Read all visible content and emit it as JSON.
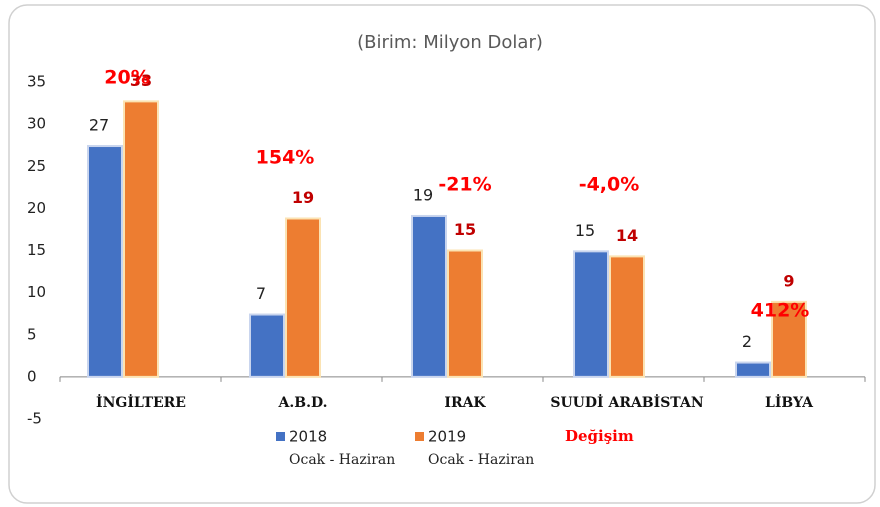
{
  "chart_data": {
    "type": "bar",
    "title": "(Birim: Milyon Dolar)",
    "categories": [
      "İNGİLTERE",
      "A.B.D.",
      "IRAK",
      "SUUDİ ARABİSTAN",
      "LİBYA"
    ],
    "series": [
      {
        "name": "2018",
        "period": "Ocak - Haziran",
        "color": "#4472c4",
        "values": [
          27.4,
          7.4,
          19.1,
          14.9,
          1.7
        ],
        "value_labels": [
          "27",
          "7",
          "19",
          "15",
          "2"
        ]
      },
      {
        "name": "2019",
        "period": "Ocak - Haziran",
        "color": "#ed7d31",
        "values": [
          32.7,
          18.8,
          15.0,
          14.3,
          8.9
        ],
        "value_labels": [
          "33",
          "19",
          "15",
          "14",
          "9"
        ]
      }
    ],
    "change": {
      "name": "Değişim",
      "color": "#ff0000",
      "labels": [
        "20%",
        "154%",
        "-21%",
        "-4,0%",
        "412%"
      ]
    },
    "ylim": [
      -5,
      35
    ],
    "yticks": [
      -5,
      0,
      5,
      10,
      15,
      20,
      25,
      30,
      35
    ]
  }
}
